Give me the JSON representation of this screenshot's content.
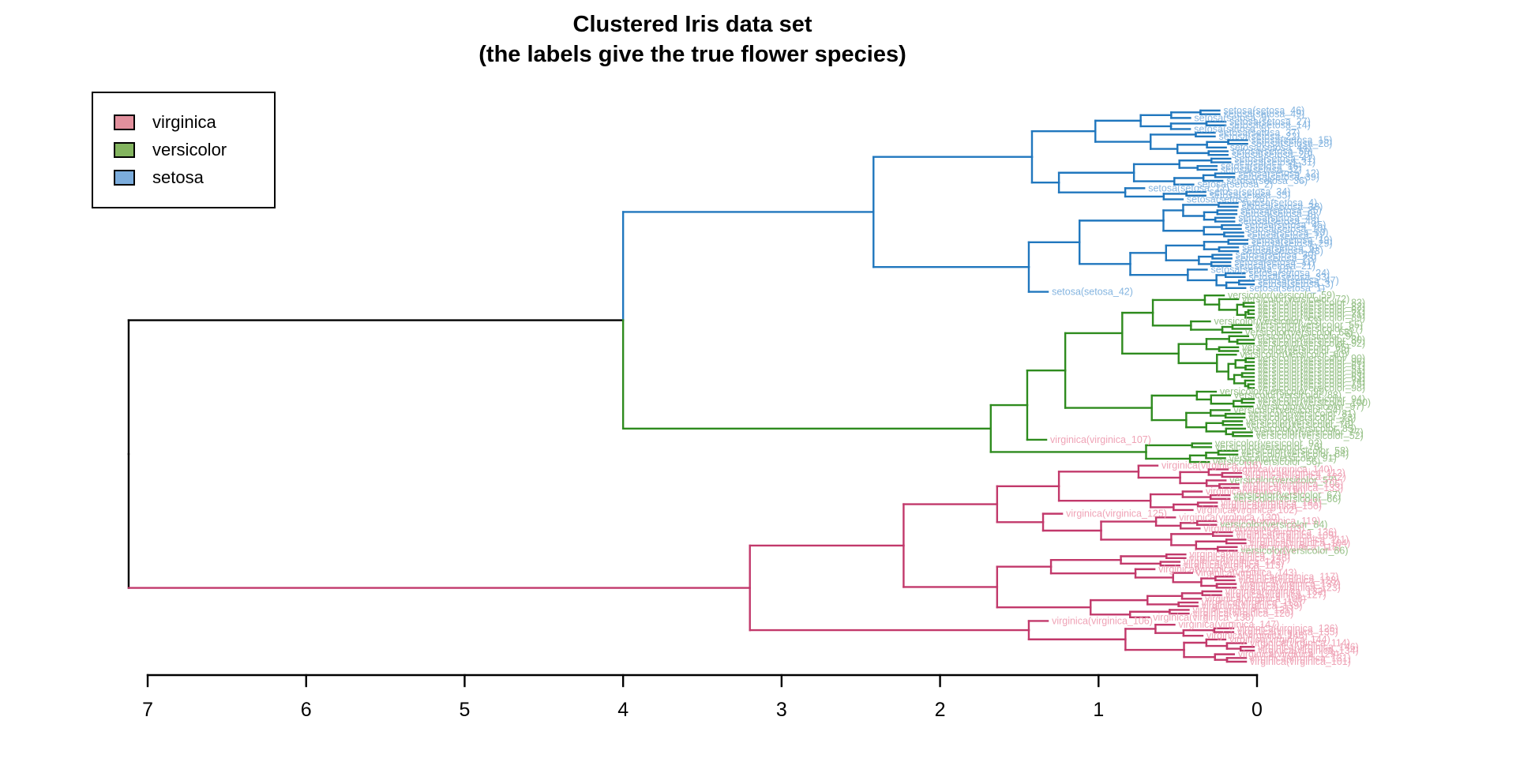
{
  "chart_data": {
    "type": "dendrogram",
    "title": "Clustered Iris data set",
    "subtitle": "(the labels give the true flower species)",
    "orientation": "horizontal, root at left, 150 leaves at right",
    "x_axis": {
      "ticks": [
        7,
        6,
        5,
        4,
        3,
        2,
        1,
        0
      ],
      "range": [
        7,
        0
      ],
      "label": ""
    },
    "legend": {
      "position": "top-left",
      "items": [
        {
          "label": "virginica",
          "swatch_color": "#E2909D"
        },
        {
          "label": "versicolor",
          "swatch_color": "#83B45F"
        },
        {
          "label": "setosa",
          "swatch_color": "#7BACDC"
        }
      ]
    },
    "colors": {
      "branch": {
        "setosa": "#2077BE",
        "versicolor": "#2E8B1E",
        "virginica": "#C2396B",
        "black": "#000000"
      },
      "label": {
        "setosa": "#85B5E0",
        "versicolor": "#98C289",
        "virginica": "#EFA3B6"
      },
      "axis": "#000000"
    },
    "leaf_label_format": "true_species(true_species_index)",
    "species_index_ranges": {
      "setosa": [
        1,
        50
      ],
      "versicolor": [
        51,
        100
      ],
      "virginica": [
        101,
        150
      ]
    },
    "visible_outlier_labels": [
      "setosa(setosa_42)",
      "virginica(virginica_107)"
    ],
    "cluster_sizes": {
      "setosa_cluster": 50,
      "versicolor_cluster": 46,
      "virginica_cluster": 54
    },
    "merge_heights": {
      "root": 7.12,
      "setosa_versicolor_join": 4.0,
      "setosa_cluster_root": 2.42,
      "versicolor_cluster_root": 1.68,
      "virginica_cluster_root": 3.2
    },
    "tree": {
      "h": 7.12,
      "edge": "black",
      "vEdge": "black",
      "children": [
        {
          "h": 4.0,
          "edge": "black",
          "children": [
            {
              "h": 2.42,
              "cluster": "setosa",
              "children": [
                {
                  "h": 1.42,
                  "children": [
                    {
                      "group": {
                        "n": 13,
                        "h": 1.02,
                        "species": "setosa"
                      }
                    },
                    {
                      "group": {
                        "n": 12,
                        "h": 1.25,
                        "species": "setosa"
                      }
                    }
                  ]
                },
                {
                  "h": 1.44,
                  "children": [
                    {
                      "group": {
                        "n": 24,
                        "h": 1.12,
                        "species": "setosa"
                      }
                    },
                    {
                      "leaf": {
                        "species": "setosa",
                        "index": 42
                      }
                    }
                  ]
                }
              ]
            },
            {
              "h": 1.68,
              "cluster": "versicolor",
              "children": [
                {
                  "h": 1.45,
                  "children": [
                    {
                      "group": {
                        "n": 39,
                        "h": 1.21,
                        "species": "versicolor"
                      }
                    },
                    {
                      "leaf": {
                        "species": "virginica",
                        "index": 107
                      }
                    }
                  ]
                },
                {
                  "group": {
                    "n": 6,
                    "h": 0.7,
                    "species": "versicolor"
                  }
                }
              ]
            }
          ]
        },
        {
          "h": 3.2,
          "cluster": "virginica",
          "children": [
            {
              "h": 2.23,
              "children": [
                {
                  "h": 1.64,
                  "children": [
                    {
                      "group": {
                        "n": 13,
                        "h": 1.25,
                        "species": "virginica",
                        "mix": {
                          "versicolor": 3
                        }
                      }
                    },
                    {
                      "group": {
                        "n": 11,
                        "h": 1.35,
                        "species": "virginica",
                        "mix": {
                          "versicolor": 2
                        }
                      }
                    }
                  ]
                },
                {
                  "h": 1.64,
                  "children": [
                    {
                      "group": {
                        "n": 10,
                        "h": 1.3,
                        "species": "virginica"
                      }
                    },
                    {
                      "group": {
                        "n": 8,
                        "h": 1.05,
                        "species": "virginica"
                      }
                    }
                  ]
                }
              ]
            },
            {
              "group": {
                "n": 12,
                "h": 1.44,
                "species": "virginica"
              }
            }
          ]
        }
      ]
    }
  }
}
